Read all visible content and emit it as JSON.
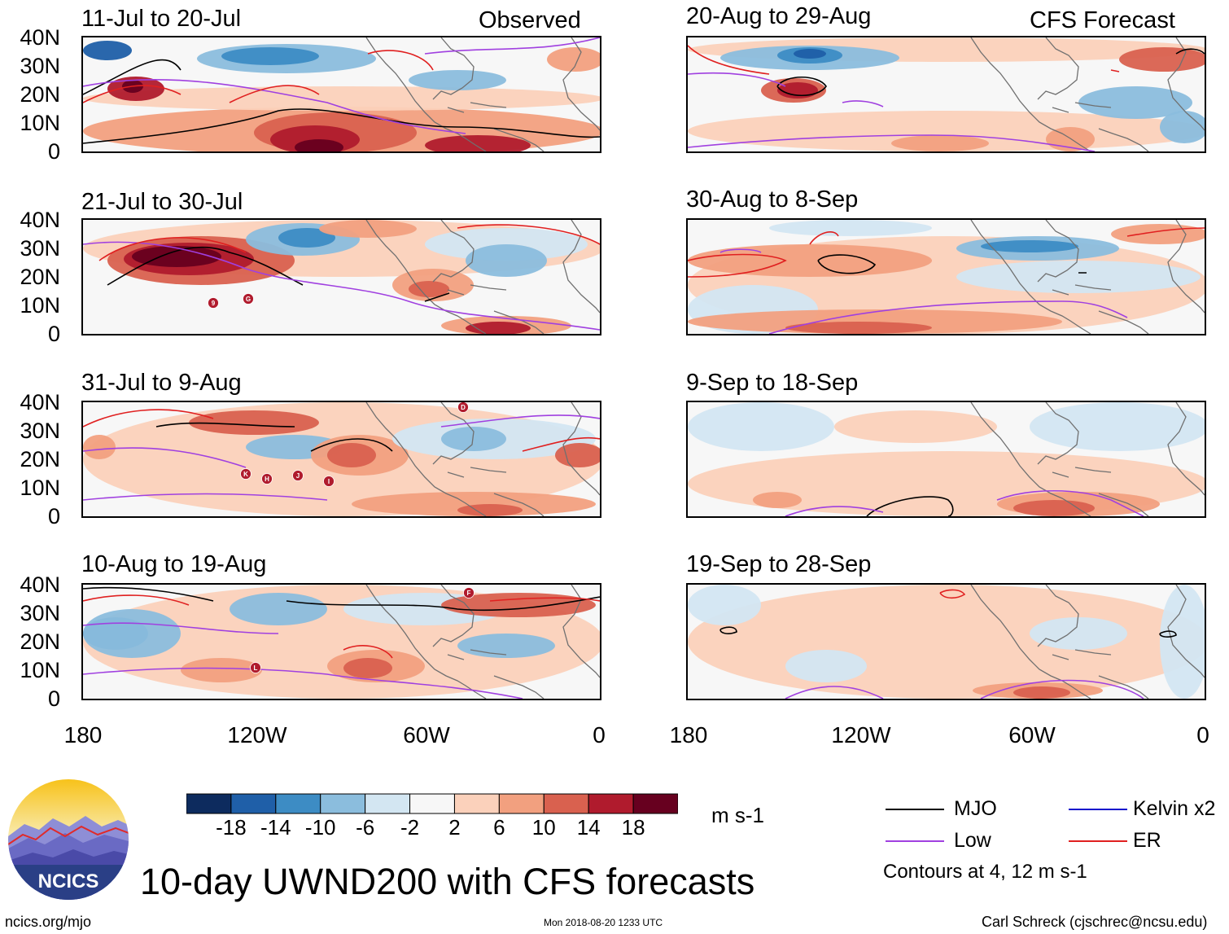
{
  "headers": {
    "left": "Observed",
    "right": "CFS Forecast"
  },
  "panels": [
    {
      "period": "11-Jul to 20-Jul",
      "group": "observed",
      "storms": []
    },
    {
      "period": "21-Jul to 30-Jul",
      "group": "observed",
      "storms": [
        "9",
        "G"
      ]
    },
    {
      "period": "31-Jul to 9-Aug",
      "group": "observed",
      "storms": [
        "D",
        "K",
        "H",
        "J",
        "I"
      ]
    },
    {
      "period": "10-Aug to 19-Aug",
      "group": "observed",
      "storms": [
        "F",
        "L"
      ]
    },
    {
      "period": "20-Aug to 29-Aug",
      "group": "forecast",
      "storms": []
    },
    {
      "period": "30-Aug to 8-Sep",
      "group": "forecast",
      "storms": []
    },
    {
      "period": "9-Sep to 18-Sep",
      "group": "forecast",
      "storms": []
    },
    {
      "period": "19-Sep to 28-Sep",
      "group": "forecast",
      "storms": []
    }
  ],
  "lat_ticks": [
    "40N",
    "30N",
    "20N",
    "10N",
    "0"
  ],
  "lon_ticks": [
    "180",
    "120W",
    "60W",
    "0"
  ],
  "colorbar": {
    "ticks": [
      "-18",
      "-14",
      "-10",
      "-6",
      "-2",
      "2",
      "6",
      "10",
      "14",
      "18"
    ],
    "units": "m s-1",
    "colors": [
      "#0d2b5e",
      "#1f5fa8",
      "#3d8cc4",
      "#8bbddd",
      "#d3e6f2",
      "#f7f7f7",
      "#fbd1bb",
      "#f2a07f",
      "#d9614f",
      "#b01b2d",
      "#67001f"
    ]
  },
  "legend": {
    "items": [
      {
        "label": "MJO",
        "color": "#000000"
      },
      {
        "label": "Kelvin x2",
        "color": "#1010cc"
      },
      {
        "label": "Low",
        "color": "#a040e0"
      },
      {
        "label": "ER",
        "color": "#e02020"
      }
    ],
    "note": "Contours at 4, 12 m s-1"
  },
  "title": "10-day UWND200 with CFS forecasts",
  "logo_text": "NCICS",
  "footer": {
    "left": "ncics.org/mjo",
    "center": "Mon 2018-08-20 1233 UTC",
    "right": "Carl Schreck (cjschrec@ncsu.edu)"
  }
}
